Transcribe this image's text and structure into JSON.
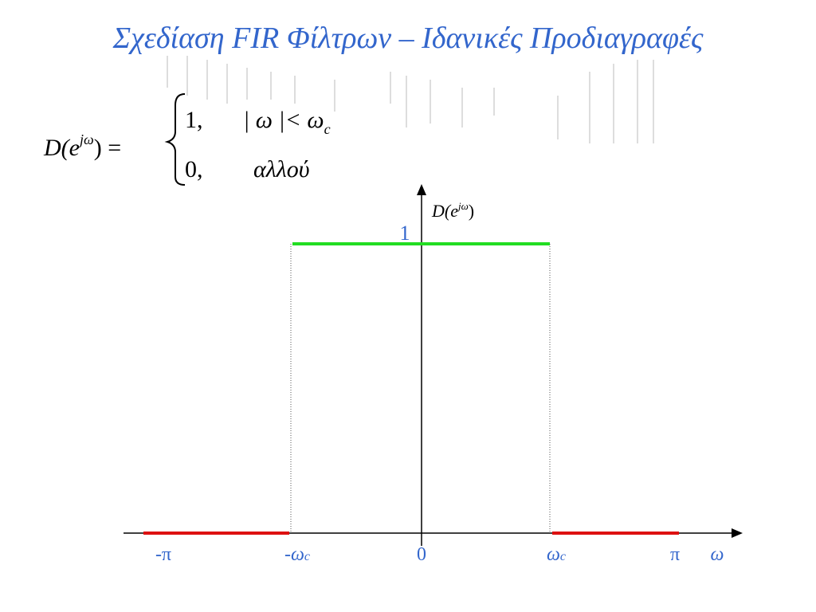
{
  "header": {
    "title": "Σχεδίαση  FIR Φίλτρων – Ιδανικές Προδιαγραφές"
  },
  "equation": {
    "lhs": "D(e",
    "lhs_sup": "jω",
    "lhs_close": ") =",
    "case1_value": "1,",
    "case1_condition": "| ω |< ω",
    "case1_sub": "c",
    "case2_value": "0,",
    "case2_condition": "αλλού"
  },
  "plot": {
    "y_label": "D(e",
    "y_label_sup": "jω",
    "y_label_close": ")",
    "level_label": "1",
    "x_labels": [
      {
        "main": "-π"
      },
      {
        "main": "-ω",
        "sub": "c"
      },
      {
        "main": "0"
      },
      {
        "main": "ω",
        "sub": "c"
      },
      {
        "main": "π"
      },
      {
        "main": "ω"
      }
    ]
  }
}
